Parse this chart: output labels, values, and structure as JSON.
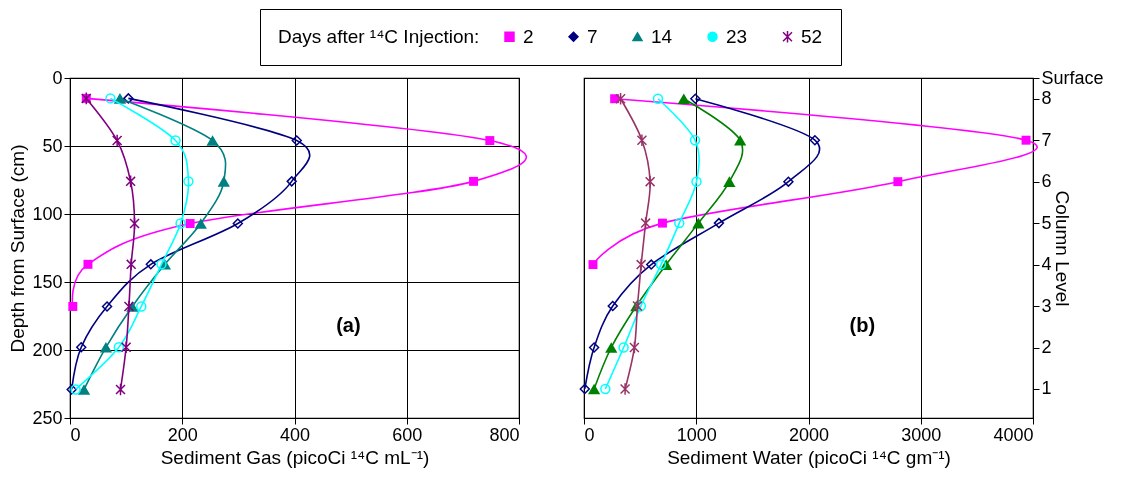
{
  "chart_data": [
    {
      "type": "line",
      "xlabel": "Sediment Gas (picoCi ¹⁴C mL⁻¹)",
      "ylabel": "Depth from Surface (cm)",
      "legend_title": "Days after ¹⁴C Injection:",
      "legend": "top",
      "grid": true,
      "xlim": [
        0,
        800
      ],
      "xticks": [
        0,
        200,
        400,
        600,
        800
      ],
      "ylim": [
        250,
        0
      ],
      "yticks": [
        0,
        50,
        100,
        150,
        200,
        250
      ],
      "annotations": [
        "(a)"
      ],
      "series": [
        {
          "name": "2",
          "color": "#ff00ff",
          "marker": "square",
          "x": [
            29,
            748,
            719,
            214,
            32,
            5
          ],
          "values": [
            15,
            46,
            76,
            107,
            137,
            168
          ]
        },
        {
          "name": "7",
          "color": "#000080",
          "marker": "diamond",
          "x": [
            104,
            404,
            395,
            299,
            144,
            66,
            20,
            3
          ],
          "values": [
            15,
            46,
            76,
            107,
            137,
            168,
            198,
            229
          ]
        },
        {
          "name": "14",
          "color": "#008080",
          "marker": "triangle",
          "x": [
            89,
            254,
            274,
            233,
            169,
            111,
            64,
            25
          ],
          "values": [
            15,
            46,
            76,
            107,
            137,
            168,
            198,
            229
          ]
        },
        {
          "name": "23",
          "color": "#00ffff",
          "marker": "circle",
          "x": [
            72,
            188,
            211,
            197,
            163,
            127,
            87,
            10
          ],
          "values": [
            15,
            46,
            76,
            107,
            137,
            168,
            198,
            229
          ]
        },
        {
          "name": "52",
          "color": "#800080",
          "marker": "cross",
          "x": [
            29,
            84,
            108,
            115,
            109,
            105,
            100,
            90
          ],
          "values": [
            15,
            46,
            76,
            107,
            137,
            168,
            198,
            229
          ]
        }
      ]
    },
    {
      "type": "line",
      "xlabel": "Sediment Water (picoCi ¹⁴C gm⁻¹)",
      "y2label": "Column Level",
      "grid": true,
      "xlim": [
        0,
        4000
      ],
      "xticks": [
        0,
        1000,
        2000,
        3000,
        4000
      ],
      "y2lim": [
        0.3,
        8.5
      ],
      "y2ticks": [
        {
          "value": 8.5,
          "label": "Surface"
        },
        8,
        7,
        6,
        5,
        4,
        3,
        2,
        1
      ],
      "annotations": [
        "(b)"
      ],
      "series": [
        {
          "color": "#ff00ff",
          "marker": "square",
          "axis": "y2",
          "x": [
            273,
            3938,
            2796,
            699,
            80
          ],
          "values": [
            8,
            7,
            6,
            5,
            4
          ]
        },
        {
          "color": "#000080",
          "marker": "diamond",
          "axis": "y2",
          "x": [
            992,
            2057,
            1821,
            1202,
            599,
            256,
            90,
            7
          ],
          "values": [
            8,
            7,
            6,
            5,
            4,
            3,
            2,
            1
          ]
        },
        {
          "color": "#008000",
          "marker": "triangle",
          "axis": "y2",
          "x": [
            889,
            1391,
            1295,
            1019,
            732,
            466,
            243,
            90
          ],
          "values": [
            8,
            7,
            6,
            5,
            4,
            3,
            2,
            1
          ]
        },
        {
          "color": "#00ffff",
          "marker": "circle",
          "axis": "y2",
          "x": [
            659,
            989,
            1002,
            849,
            686,
            506,
            353,
            190
          ],
          "values": [
            8,
            7,
            6,
            5,
            4,
            3,
            2,
            1
          ]
        },
        {
          "color": "#993366",
          "marker": "cross",
          "axis": "y2",
          "x": [
            326,
            516,
            589,
            549,
            509,
            476,
            449,
            366
          ],
          "values": [
            8,
            7,
            6,
            5,
            4,
            3,
            2,
            1
          ]
        }
      ]
    }
  ]
}
